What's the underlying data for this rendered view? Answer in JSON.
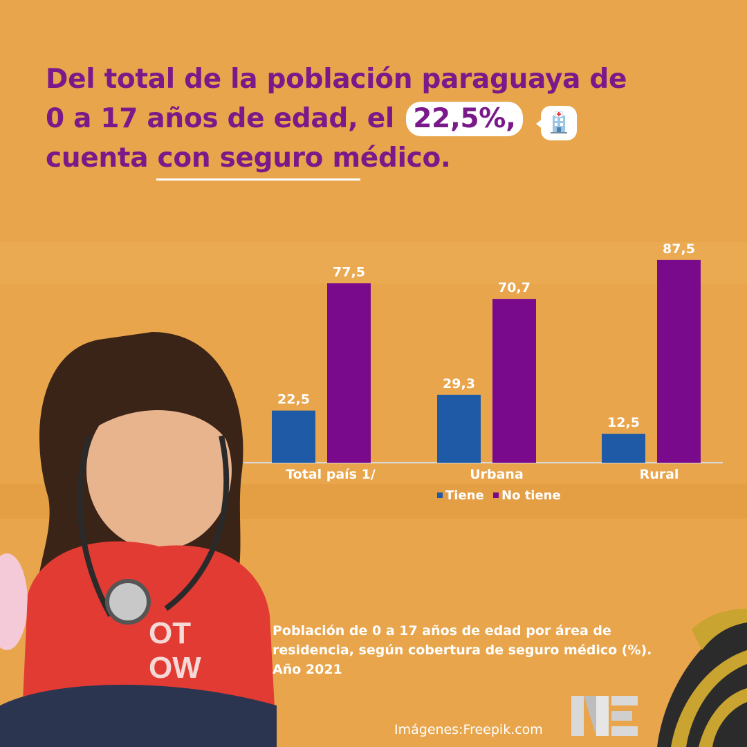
{
  "headline": {
    "line1": "Del total de la población paraguaya de",
    "line2_prefix": "0 a 17 años de edad, el",
    "highlight": "22,5%,",
    "line3_prefix": "cuenta ",
    "line3_underlined": "con seguro m",
    "line3_suffix": "édico."
  },
  "icons": {
    "badge": "hospital-icon",
    "logo": "ne-logo"
  },
  "colors": {
    "background": "#E8A54B",
    "title": "#7A1A8A",
    "tiene": "#1F5AA6",
    "no_tiene": "#7A0A8C",
    "text_light": "#ffffff"
  },
  "chart_data": {
    "type": "bar",
    "categories": [
      "Total país 1/",
      "Urbana",
      "Rural"
    ],
    "series": [
      {
        "name": "Tiene",
        "values": [
          22.5,
          29.3,
          12.5
        ],
        "labels": [
          "22,5",
          "29,3",
          "12,5"
        ]
      },
      {
        "name": "No tiene",
        "values": [
          77.5,
          70.7,
          87.5
        ],
        "labels": [
          "77,5",
          "70,7",
          "87,5"
        ]
      }
    ],
    "title": "",
    "xlabel": "",
    "ylabel": "",
    "ylim": [
      0,
      100
    ],
    "grid": false,
    "legend": "bottom"
  },
  "caption": "Población de 0 a 17 años de edad por área de residencia, según cobertura de seguro médico (%). Año 2021",
  "credit": "Imágenes:Freepik.com"
}
